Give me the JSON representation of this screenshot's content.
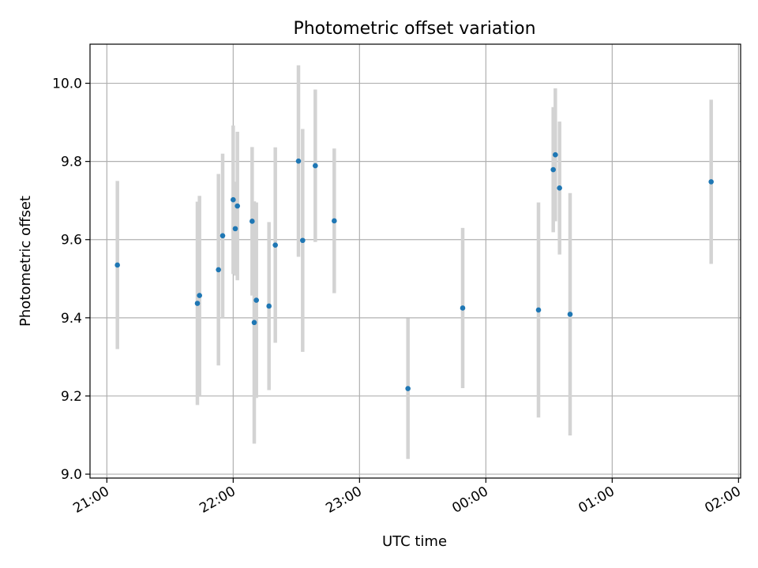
{
  "chart_data": {
    "type": "scatter",
    "title": "Photometric offset variation",
    "xlabel": "UTC time",
    "ylabel": "Photometric offset",
    "x_ticks": [
      "21:00",
      "22:00",
      "23:00",
      "00:00",
      "01:00",
      "02:00"
    ],
    "y_ticks": [
      "9.0",
      "9.2",
      "9.4",
      "9.6",
      "9.8",
      "10.0"
    ],
    "xlim": [
      "20:52",
      "02:01"
    ],
    "ylim": [
      8.99,
      10.1
    ],
    "grid": true,
    "error_bar_color": "#d3d3d3",
    "point_color": "#1f77b4",
    "points": [
      {
        "t": "21:05",
        "y": 9.535,
        "err": 0.215
      },
      {
        "t": "21:43",
        "y": 9.437,
        "err": 0.26
      },
      {
        "t": "21:44",
        "y": 9.457,
        "err": 0.255
      },
      {
        "t": "21:53",
        "y": 9.523,
        "err": 0.245
      },
      {
        "t": "21:55",
        "y": 9.61,
        "err": 0.21
      },
      {
        "t": "22:00",
        "y": 9.702,
        "err": 0.19
      },
      {
        "t": "22:01",
        "y": 9.628,
        "err": 0.12
      },
      {
        "t": "22:02",
        "y": 9.686,
        "err": 0.19
      },
      {
        "t": "22:09",
        "y": 9.647,
        "err": 0.19
      },
      {
        "t": "22:10",
        "y": 9.388,
        "err": 0.31
      },
      {
        "t": "22:11",
        "y": 9.445,
        "err": 0.25
      },
      {
        "t": "22:17",
        "y": 9.43,
        "err": 0.215
      },
      {
        "t": "22:20",
        "y": 9.586,
        "err": 0.25
      },
      {
        "t": "22:31",
        "y": 9.801,
        "err": 0.245
      },
      {
        "t": "22:33",
        "y": 9.598,
        "err": 0.285
      },
      {
        "t": "22:39",
        "y": 9.789,
        "err": 0.195
      },
      {
        "t": "22:48",
        "y": 9.648,
        "err": 0.185
      },
      {
        "t": "23:23",
        "y": 9.219,
        "err": 0.18
      },
      {
        "t": "23:49",
        "y": 9.425,
        "err": 0.205
      },
      {
        "t": "00:25",
        "y": 9.42,
        "err": 0.275
      },
      {
        "t": "00:32",
        "y": 9.779,
        "err": 0.16
      },
      {
        "t": "00:33",
        "y": 9.817,
        "err": 0.17
      },
      {
        "t": "00:35",
        "y": 9.732,
        "err": 0.17
      },
      {
        "t": "00:40",
        "y": 9.409,
        "err": 0.31
      },
      {
        "t": "01:47",
        "y": 9.748,
        "err": 0.21
      }
    ]
  }
}
